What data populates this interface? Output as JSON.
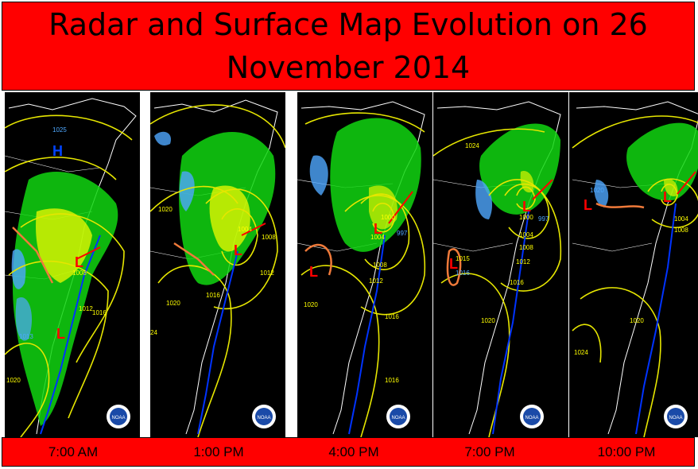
{
  "title": "Radar and Surface Map Evolution on 26 November 2014",
  "panels": [
    {
      "time": "7:00 AM",
      "isobars": [
        "1025",
        "1016",
        "1012",
        "1008",
        "1013",
        "1020"
      ],
      "pressure_systems": [
        "H",
        "L",
        "L"
      ]
    },
    {
      "time": "1:00 PM",
      "isobars": [
        "1020",
        "1004",
        "1008",
        "1012",
        "1016",
        "1020",
        "24"
      ],
      "pressure_systems": [
        "L"
      ]
    },
    {
      "time": "4:00 PM",
      "isobars": [
        "1000",
        "1004",
        "997",
        "1008",
        "1012",
        "1020",
        "1016",
        "1016"
      ],
      "pressure_systems": [
        "L",
        "L"
      ]
    },
    {
      "time": "7:00 PM",
      "isobars": [
        "1024",
        "1000",
        "997",
        "1004",
        "1008",
        "1012",
        "1016",
        "1015",
        "1016",
        "1020"
      ],
      "pressure_systems": [
        "L",
        "L"
      ]
    },
    {
      "time": "10:00 PM",
      "isobars": [
        "1020",
        "1004",
        "1008",
        "1020",
        "1024"
      ],
      "pressure_systems": [
        "L",
        "L"
      ]
    }
  ],
  "logo": "NOAA",
  "colors": {
    "banner": "#ff0000",
    "isobar": "#e6e600",
    "isobar_label": "#ffff00",
    "low_symbol": "#ff0000",
    "high_symbol": "#0044ff",
    "cold_front": "#0033ff",
    "warm_front": "#ff0000",
    "trough": "#f07a3a",
    "radar_light": "#4fa8ff",
    "radar_green": "#11d611",
    "radar_yellow": "#ffff00"
  }
}
